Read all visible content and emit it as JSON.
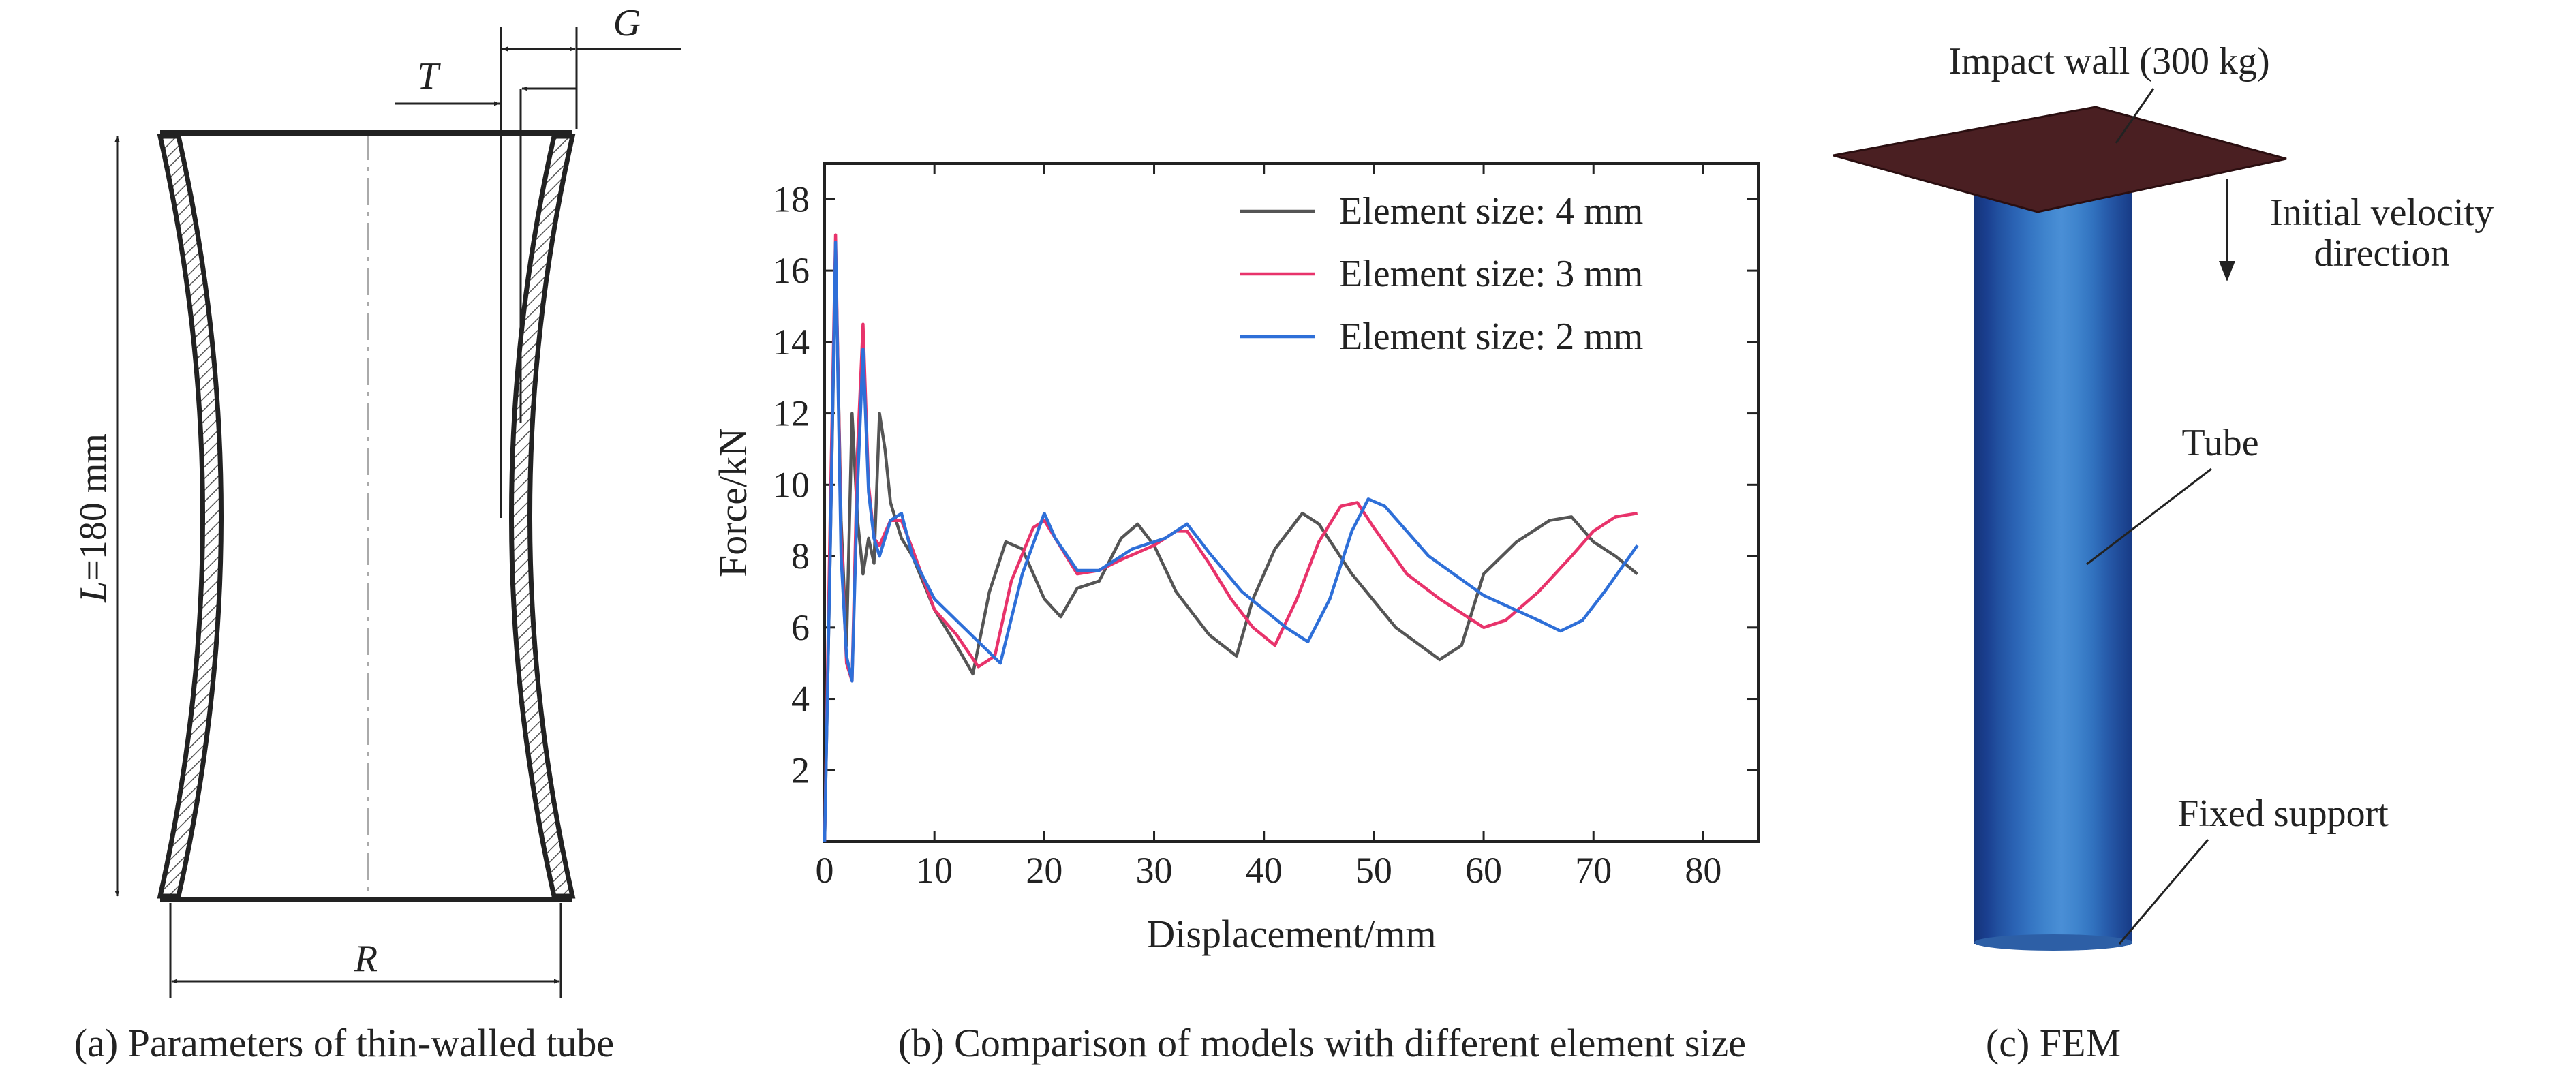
{
  "panel_a": {
    "caption": "(a) Parameters of thin-walled tube",
    "label_T": "T",
    "label_G": "G",
    "label_L_var": "L",
    "label_L_value": "=180 mm",
    "label_R": "R"
  },
  "panel_b": {
    "caption": "(b) Comparison of models with different element size"
  },
  "panel_c": {
    "caption": "(c) FEM",
    "impact_wall": "Impact wall (300 kg)",
    "velocity_line1": "Initial velocity",
    "velocity_line2": "direction",
    "tube": "Tube",
    "fixed_support": "Fixed support"
  },
  "colors": {
    "series_4mm": "#555555",
    "series_3mm": "#e8336b",
    "series_2mm": "#2e6fd8",
    "impact_wall": "#4a1f22",
    "tube_dark": "#15347a",
    "tube_light": "#4a8fd6"
  },
  "chart_data": {
    "type": "line",
    "title": "",
    "xlabel": "Displacement/mm",
    "ylabel": "Force/kN",
    "xlim": [
      0,
      85
    ],
    "ylim": [
      0,
      19
    ],
    "xticks": [
      0,
      10,
      20,
      30,
      40,
      50,
      60,
      70,
      80
    ],
    "yticks": [
      2,
      4,
      6,
      8,
      10,
      12,
      14,
      16,
      18
    ],
    "grid": false,
    "legend": "top-right",
    "series": [
      {
        "name": "Element size: 4 mm",
        "color": "#555555",
        "x": [
          0,
          0.5,
          1,
          1.5,
          2,
          2.5,
          3,
          3.5,
          4,
          4.5,
          5,
          5.5,
          6,
          7,
          8,
          10,
          12,
          13.5,
          15,
          16.5,
          18,
          20,
          21.5,
          23,
          25,
          27,
          28.5,
          30,
          32,
          35,
          37.5,
          39,
          41,
          43.5,
          45,
          48,
          52,
          56,
          58,
          60,
          63,
          66,
          68,
          70,
          72,
          74
        ],
        "values": [
          0,
          8,
          16.5,
          9,
          5.5,
          12,
          9,
          7.5,
          8.5,
          7.8,
          12,
          11,
          9.5,
          8.5,
          8,
          6.5,
          5.5,
          4.7,
          7,
          8.4,
          8.2,
          6.8,
          6.3,
          7.1,
          7.3,
          8.5,
          8.9,
          8.3,
          7,
          5.8,
          5.2,
          6.8,
          8.2,
          9.2,
          8.9,
          7.5,
          6,
          5.1,
          5.5,
          7.5,
          8.4,
          9,
          9.1,
          8.4,
          8,
          7.5
        ]
      },
      {
        "name": "Element size: 3 mm",
        "color": "#e8336b",
        "x": [
          0,
          0.5,
          1,
          1.5,
          2,
          2.5,
          3,
          3.5,
          4,
          4.5,
          5,
          6,
          7,
          8,
          10,
          12,
          14,
          15.5,
          17,
          19,
          20,
          21,
          23,
          25,
          27,
          30,
          32,
          33,
          35,
          37,
          39,
          41,
          43,
          45,
          47,
          48.5,
          50,
          53,
          56,
          60,
          62,
          65,
          68,
          70,
          72,
          74
        ],
        "values": [
          0,
          9,
          17,
          8.5,
          5,
          4.5,
          11,
          14.5,
          10,
          8.5,
          8.3,
          9,
          9,
          8.2,
          6.5,
          5.8,
          4.9,
          5.2,
          7.3,
          8.8,
          9,
          8.5,
          7.5,
          7.6,
          7.9,
          8.3,
          8.7,
          8.7,
          7.8,
          6.8,
          6,
          5.5,
          6.8,
          8.4,
          9.4,
          9.5,
          8.8,
          7.5,
          6.8,
          6,
          6.2,
          7,
          8,
          8.7,
          9.1,
          9.2
        ]
      },
      {
        "name": "Element size: 2 mm",
        "color": "#2e6fd8",
        "x": [
          0,
          0.5,
          1,
          1.5,
          2,
          2.5,
          3,
          3.5,
          4,
          4.5,
          5,
          6,
          7,
          8,
          10,
          12,
          14,
          16,
          18,
          20,
          21,
          23,
          25,
          28,
          31,
          33,
          35,
          38,
          42,
          44,
          46,
          48,
          49.5,
          51,
          55,
          60,
          65,
          67,
          69,
          71,
          74
        ],
        "values": [
          0,
          8,
          16.8,
          8,
          5.2,
          4.5,
          10,
          13.8,
          9.8,
          8.5,
          8,
          9,
          9.2,
          8,
          6.8,
          6.2,
          5.6,
          5,
          7.5,
          9.2,
          8.5,
          7.6,
          7.6,
          8.2,
          8.5,
          8.9,
          8.1,
          7,
          6,
          5.6,
          6.8,
          8.7,
          9.6,
          9.4,
          8,
          6.9,
          6.2,
          5.9,
          6.2,
          7,
          8.3
        ]
      }
    ]
  }
}
